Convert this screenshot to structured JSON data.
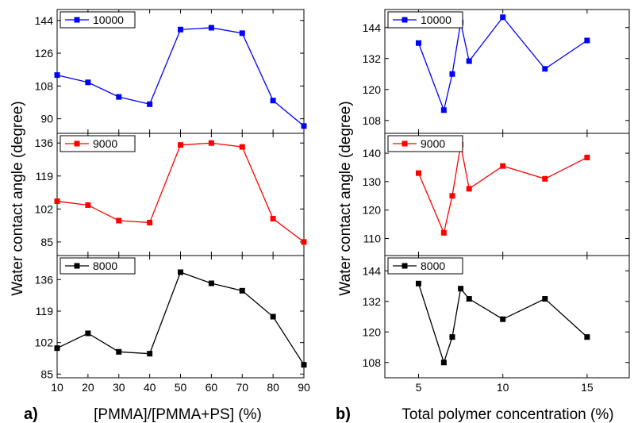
{
  "figure": {
    "ylabel": "Water contact angle (degree)",
    "panel_labels": [
      "a)",
      "b)"
    ]
  },
  "chart_data": [
    {
      "type": "line",
      "panel": "a)",
      "xlabel": "[PMMA]/[PMMA+PS] (%)",
      "ylabel": "Water contact angle (degree)",
      "xlim": [
        10,
        90
      ],
      "x_ticks": [
        10,
        20,
        30,
        40,
        50,
        60,
        70,
        80,
        90
      ],
      "x": [
        10,
        20,
        30,
        40,
        50,
        60,
        70,
        80,
        90
      ],
      "legend_position": "top-left",
      "grid": false,
      "subplots": [
        {
          "name": "10000",
          "color": "#0000ff",
          "ylim": [
            82,
            150
          ],
          "y_ticks": [
            90,
            108,
            126,
            144
          ],
          "values": [
            114,
            110,
            102,
            98,
            139,
            140,
            137,
            100,
            86
          ]
        },
        {
          "name": "9000",
          "color": "#ff0000",
          "ylim": [
            78,
            141
          ],
          "y_ticks": [
            85,
            102,
            119,
            136
          ],
          "values": [
            106,
            104,
            96,
            95,
            135,
            136,
            134,
            97,
            85
          ]
        },
        {
          "name": "8000",
          "color": "#000000",
          "ylim": [
            83,
            149
          ],
          "y_ticks": [
            85,
            102,
            119,
            136
          ],
          "values": [
            99,
            107,
            97,
            96,
            140,
            134,
            130,
            116,
            90
          ]
        }
      ]
    },
    {
      "type": "line",
      "panel": "b)",
      "xlabel": "Total polymer concentration (%)",
      "ylabel": "Water contact angle (degree)",
      "xlim": [
        3,
        17.5
      ],
      "x_ticks": [
        5,
        10,
        15
      ],
      "x": [
        5,
        6.5,
        7,
        7.5,
        8,
        10,
        12.5,
        15
      ],
      "legend_position": "top-left",
      "grid": false,
      "subplots": [
        {
          "name": "10000",
          "color": "#0000ff",
          "ylim": [
            103,
            151
          ],
          "y_ticks": [
            108,
            120,
            132,
            144
          ],
          "values": [
            138,
            112,
            126,
            146,
            131,
            148,
            128,
            139
          ]
        },
        {
          "name": "9000",
          "color": "#ff0000",
          "ylim": [
            104,
            147
          ],
          "y_ticks": [
            110,
            120,
            130,
            140
          ],
          "values": [
            133,
            112,
            125,
            143,
            127.5,
            135.5,
            131,
            138.5
          ]
        },
        {
          "name": "8000",
          "color": "#000000",
          "ylim": [
            102,
            150
          ],
          "y_ticks": [
            108,
            120,
            132,
            144
          ],
          "values": [
            139,
            108,
            118,
            137,
            133,
            125,
            133,
            118
          ]
        }
      ]
    }
  ]
}
